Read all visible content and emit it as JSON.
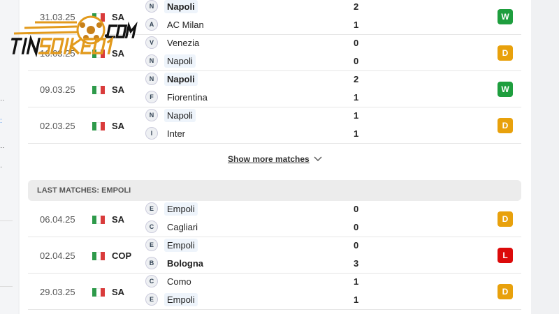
{
  "watermark": {
    "text": "TINSOIKEO1 .COM"
  },
  "matches_top": [
    {
      "date": "31.03.25",
      "comp": "SA",
      "home": {
        "name": "Napoli",
        "icon": "napoli-badge",
        "bold": true,
        "highlight": true
      },
      "away": {
        "name": "AC Milan",
        "icon": "milan-badge",
        "bold": false,
        "highlight": false
      },
      "home_score": "2",
      "away_score": "1",
      "result": "W"
    },
    {
      "date": "16.03.25",
      "comp": "SA",
      "home": {
        "name": "Venezia",
        "icon": "venezia-badge",
        "bold": false,
        "highlight": false
      },
      "away": {
        "name": "Napoli",
        "icon": "napoli-badge",
        "bold": false,
        "highlight": true
      },
      "home_score": "0",
      "away_score": "0",
      "result": "D"
    },
    {
      "date": "09.03.25",
      "comp": "SA",
      "home": {
        "name": "Napoli",
        "icon": "napoli-badge",
        "bold": true,
        "highlight": true
      },
      "away": {
        "name": "Fiorentina",
        "icon": "fiorentina-badge",
        "bold": false,
        "highlight": false
      },
      "home_score": "2",
      "away_score": "1",
      "result": "W"
    },
    {
      "date": "02.03.25",
      "comp": "SA",
      "home": {
        "name": "Napoli",
        "icon": "napoli-badge",
        "bold": false,
        "highlight": true
      },
      "away": {
        "name": "Inter",
        "icon": "inter-badge",
        "bold": false,
        "highlight": false
      },
      "home_score": "1",
      "away_score": "1",
      "result": "D"
    }
  ],
  "show_more": "Show more matches",
  "section_empoli": {
    "title": "LAST MATCHES: EMPOLI"
  },
  "matches_empoli": [
    {
      "date": "06.04.25",
      "comp": "SA",
      "home": {
        "name": "Empoli",
        "icon": "empoli-badge",
        "bold": false,
        "highlight": true
      },
      "away": {
        "name": "Cagliari",
        "icon": "cagliari-badge",
        "bold": false,
        "highlight": false
      },
      "home_score": "0",
      "away_score": "0",
      "result": "D"
    },
    {
      "date": "02.04.25",
      "comp": "COP",
      "home": {
        "name": "Empoli",
        "icon": "empoli-badge",
        "bold": false,
        "highlight": true
      },
      "away": {
        "name": "Bologna",
        "icon": "bologna-badge",
        "bold": true,
        "highlight": false
      },
      "home_score": "0",
      "away_score": "3",
      "result": "L"
    },
    {
      "date": "29.03.25",
      "comp": "SA",
      "home": {
        "name": "Como",
        "icon": "como-badge",
        "bold": false,
        "highlight": false
      },
      "away": {
        "name": "Empoli",
        "icon": "empoli-badge",
        "bold": false,
        "highlight": true
      },
      "home_score": "1",
      "away_score": "1",
      "result": "D"
    }
  ],
  "colors": {
    "W": "#1e9e3e",
    "D": "#e8a10c",
    "L": "#dc0a0a",
    "flag_green": "#2e9a4a",
    "flag_red": "#d93b3b",
    "logo_orange": "#e29a1c"
  }
}
